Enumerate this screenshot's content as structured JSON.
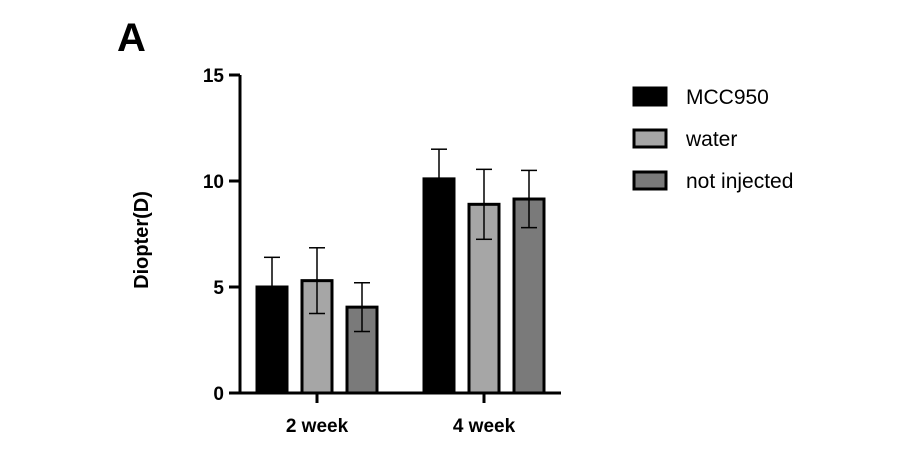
{
  "panel_label": "A",
  "colors": {
    "MCC950": "#000000",
    "water": "#a6a6a6",
    "not injected": "#7a7a7a",
    "axis": "#000000"
  },
  "chart_data": {
    "type": "bar",
    "title": "",
    "xlabel": "",
    "ylabel": "Diopter(D)",
    "ylim": [
      0,
      15
    ],
    "yticks": [
      0,
      5,
      10,
      15
    ],
    "categories": [
      "2 week",
      "4 week"
    ],
    "legend_position": "right",
    "series": [
      {
        "name": "MCC950",
        "values": [
          5.0,
          10.1
        ],
        "errors": [
          1.4,
          1.4
        ]
      },
      {
        "name": "water",
        "values": [
          5.3,
          8.9
        ],
        "errors": [
          1.55,
          1.65
        ]
      },
      {
        "name": "not injected",
        "values": [
          4.05,
          9.15
        ],
        "errors": [
          1.15,
          1.35
        ]
      }
    ]
  }
}
